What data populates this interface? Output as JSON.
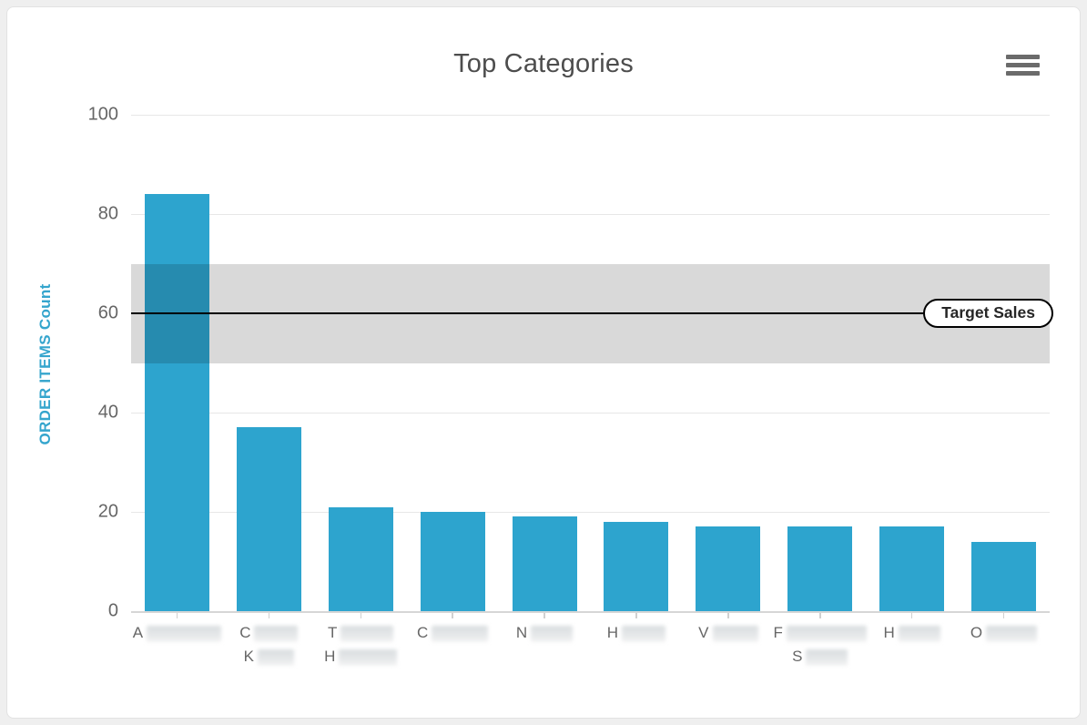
{
  "card": {
    "title": "Top Categories",
    "menu": {
      "icon": "hamburger-menu-icon"
    }
  },
  "chart_data": {
    "type": "bar",
    "title": "Top Categories",
    "xlabel": "",
    "ylabel": "ORDER ITEMS Count",
    "ylim": [
      0,
      100
    ],
    "yticks": [
      "0",
      "20",
      "40",
      "60",
      "80",
      "100"
    ],
    "grid": true,
    "legend_position": "none",
    "categories": [
      {
        "lines": [
          {
            "prefix": "A",
            "redacted": true,
            "blur_width": 82
          }
        ]
      },
      {
        "lines": [
          {
            "prefix": "C",
            "redacted": true,
            "blur_width": 48
          },
          {
            "prefix": "K",
            "redacted": true,
            "blur_width": 40
          }
        ]
      },
      {
        "lines": [
          {
            "prefix": "T",
            "redacted": true,
            "blur_width": 58
          },
          {
            "prefix": "H",
            "redacted": true,
            "blur_width": 64
          }
        ]
      },
      {
        "lines": [
          {
            "prefix": "C",
            "redacted": true,
            "blur_width": 62
          }
        ]
      },
      {
        "lines": [
          {
            "prefix": "N",
            "redacted": true,
            "blur_width": 46
          }
        ]
      },
      {
        "lines": [
          {
            "prefix": "H",
            "redacted": true,
            "blur_width": 48
          }
        ]
      },
      {
        "lines": [
          {
            "prefix": "V",
            "redacted": true,
            "blur_width": 50
          }
        ]
      },
      {
        "lines": [
          {
            "prefix": "F",
            "redacted": true,
            "blur_width": 88
          },
          {
            "prefix": "S",
            "redacted": true,
            "blur_width": 46
          }
        ]
      },
      {
        "lines": [
          {
            "prefix": "H",
            "redacted": true,
            "blur_width": 46
          }
        ]
      },
      {
        "lines": [
          {
            "prefix": "O",
            "redacted": true,
            "blur_width": 56
          }
        ]
      }
    ],
    "values": [
      84,
      37,
      21,
      20,
      19,
      18,
      17,
      17,
      17,
      14
    ],
    "plot_band": {
      "from": 50,
      "to": 70,
      "color": "rgba(0,0,0,0.15)"
    },
    "target_line": {
      "value": 60,
      "label": "Target Sales",
      "color": "#000000"
    },
    "colors": {
      "bar": "#2da4ce",
      "y_axis_title": "#35a5cd",
      "tick_labels": "#666666",
      "title": "#4d4d4d",
      "gridline": "#e7e7e7"
    }
  }
}
